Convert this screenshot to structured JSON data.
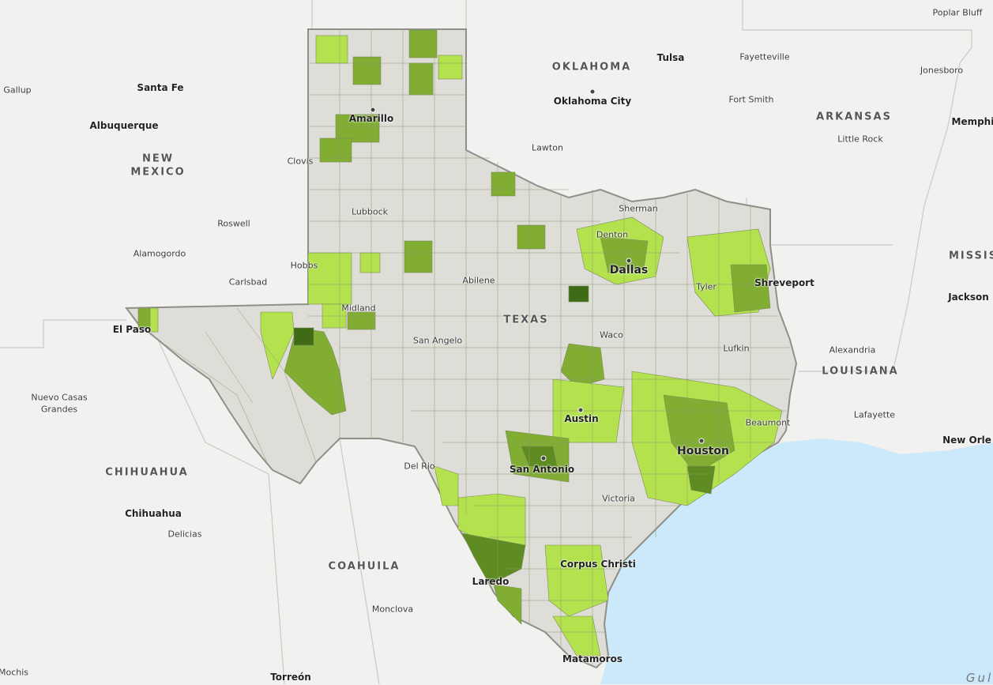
{
  "map": {
    "colors": {
      "land": "#f1f1ef",
      "water": "#cbe9fb",
      "texas_base": "#dfddd7",
      "county_border": "#8a9a6a",
      "level_1": "#b3e24e",
      "level_2": "#80ad32",
      "level_3": "#5e8c23",
      "level_4": "#3f6a16"
    },
    "labels": {
      "poplar_bluff": "Poplar Bluff",
      "tulsa": "Tulsa",
      "fayetteville": "Fayetteville",
      "oklahoma": "OKLAHOMA",
      "oklahoma_city": "Oklahoma City",
      "fort_smith": "Fort Smith",
      "jonesboro": "Jonesboro",
      "arkansas": "ARKANSAS",
      "memphis": "Memphis",
      "little_rock": "Little Rock",
      "lawton": "Lawton",
      "gallup": "Gallup",
      "santa_fe": "Santa Fe",
      "albuquerque": "Albuquerque",
      "new_mexico_1": "NEW",
      "new_mexico_2": "MEXICO",
      "clovis": "Clovis",
      "amarillo": "Amarillo",
      "lubbock": "Lubbock",
      "roswell": "Roswell",
      "alamogordo": "Alamogordo",
      "hobbs": "Hobbs",
      "carlsbad": "Carlsbad",
      "el_paso": "El Paso",
      "midland": "Midland",
      "abilene": "Abilene",
      "texas": "TEXAS",
      "san_angelo": "San Angelo",
      "denton": "Denton",
      "sherman": "Sherman",
      "dallas": "Dallas",
      "tyler": "Tyler",
      "shreveport": "Shreveport",
      "mississippi": "MISSIS",
      "jackson": "Jackson",
      "waco": "Waco",
      "lufkin": "Lufkin",
      "alexandria": "Alexandria",
      "louisiana": "LOUISIANA",
      "nuevo_casas_grandes_1": "Nuevo Casas",
      "nuevo_casas_grandes_2": "Grandes",
      "austin": "Austin",
      "beaumont": "Beaumont",
      "lafayette": "Lafayette",
      "houston": "Houston",
      "new_orleans": "New Orle",
      "chihuahua_state": "CHIHUAHUA",
      "del_rio": "Del Rio",
      "san_antonio": "San Antonio",
      "chihuahua": "Chihuahua",
      "victoria": "Victoria",
      "delicias": "Delicias",
      "coahuila": "COAHUILA",
      "corpus_christi": "Corpus Christi",
      "laredo": "Laredo",
      "monclova": "Monclova",
      "matamoros": "Matamoros",
      "mochis": "Mochis",
      "torreon": "Torreón",
      "gulf": "Gul"
    }
  }
}
